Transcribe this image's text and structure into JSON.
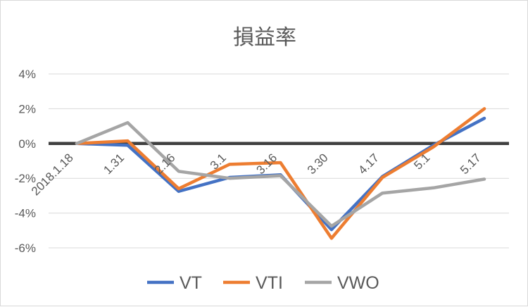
{
  "chart_data": {
    "type": "line",
    "title": "損益率",
    "categories": [
      "2018.1.18",
      "1.31",
      "2.16",
      "3.1",
      "3.16",
      "3.30",
      "4.17",
      "5.1",
      "5.17"
    ],
    "y_tick_labels": [
      "4%",
      "2%",
      "0%",
      "-2%",
      "-4%",
      "-6%"
    ],
    "y_ticks": [
      4,
      2,
      0,
      -2,
      -4,
      -6
    ],
    "ylim": [
      -6,
      4
    ],
    "y_unit": "%",
    "grid": true,
    "zero_line": true,
    "legend_position": "bottom",
    "series": [
      {
        "name": "VT",
        "color": "#4472C4",
        "values": [
          0.0,
          -0.1,
          -2.75,
          -1.95,
          -1.8,
          -4.95,
          -1.9,
          -0.1,
          1.45
        ]
      },
      {
        "name": "VTI",
        "color": "#ED7D31",
        "values": [
          0.0,
          0.15,
          -2.6,
          -1.2,
          -1.1,
          -5.45,
          -1.95,
          -0.2,
          2.0
        ]
      },
      {
        "name": "VWO",
        "color": "#A5A5A5",
        "values": [
          0.0,
          1.2,
          -1.6,
          -2.0,
          -1.85,
          -4.75,
          -2.85,
          -2.55,
          -2.05
        ]
      }
    ]
  }
}
